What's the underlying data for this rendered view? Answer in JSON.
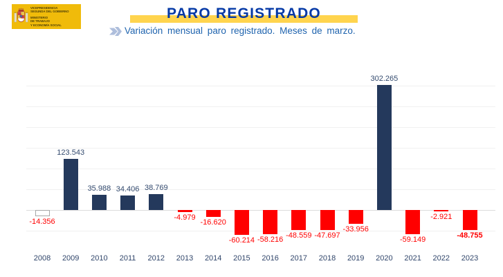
{
  "logo": {
    "lines": [
      "VICEPRESIDENCIA",
      "SEGUNDA DEL GOBIERNO",
      "MINISTERIO",
      "DE TRABAJO",
      "Y ECONOMÍA SOCIAL"
    ]
  },
  "header": {
    "title": "PARO REGISTRADO",
    "subtitle": "Variación mensual paro registrado. Meses de marzo."
  },
  "chart_data": {
    "type": "bar",
    "title": "Variación mensual paro registrado. Meses de marzo.",
    "categories": [
      "2008",
      "2009",
      "2010",
      "2011",
      "2012",
      "2013",
      "2014",
      "2015",
      "2016",
      "2017",
      "2018",
      "2019",
      "2020",
      "2021",
      "2022",
      "2023"
    ],
    "values": [
      -14356,
      123543,
      35988,
      34406,
      38769,
      -4979,
      -16620,
      -60214,
      -58216,
      -48559,
      -47697,
      -33956,
      302265,
      -59149,
      -2921,
      -48755
    ],
    "value_labels": [
      "-14.356",
      "123.543",
      "35.988",
      "34.406",
      "38.769",
      "-4.979",
      "-16.620",
      "-60.214",
      "-58.216",
      "-48.559",
      "-47.697",
      "-33.956",
      "302.265",
      "-59.149",
      "-2.921",
      "-48.755"
    ],
    "xlabel": "",
    "ylabel": "",
    "ylim": [
      -75000,
      330000
    ],
    "grid": true,
    "gridlines": [
      300000,
      250000,
      200000,
      150000,
      100000,
      50000,
      0,
      -50000
    ],
    "y_axis_tick_labels_visible": false,
    "legend": "none",
    "outlined_bar_category": "2008",
    "bold_label_category": "2023"
  },
  "colors": {
    "bar_positive": "#24395C",
    "bar_negative": "#FF0000",
    "outlined_bar_border": "#A6A6A6",
    "title_blue": "#0439A6",
    "subtitle_blue": "#1E63AE",
    "highlight_band_yellow": "#FFD44E",
    "logo_yellow": "#F0BB0A",
    "positive_label": "#334A6E",
    "negative_label": "#FF0000",
    "year_label": "#30456A"
  }
}
